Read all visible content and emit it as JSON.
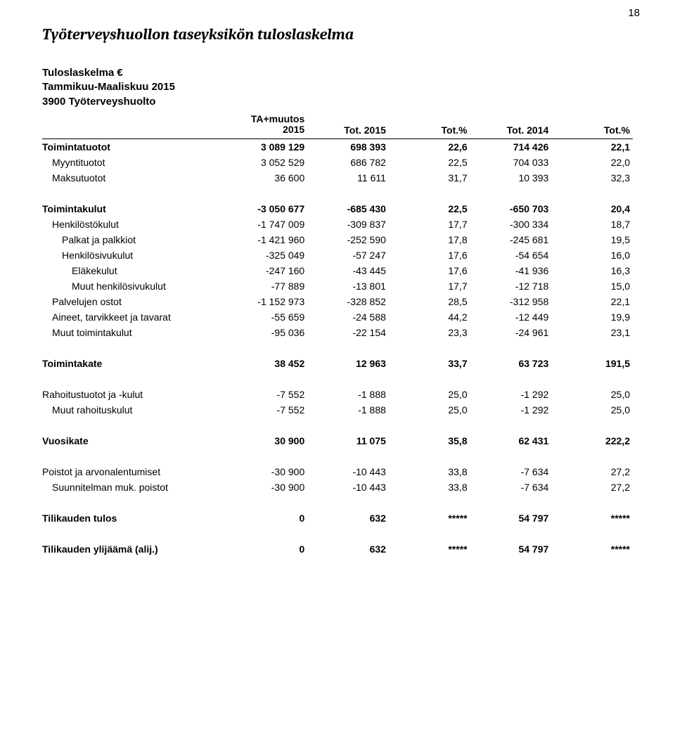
{
  "page_number": "18",
  "main_title": "Työterveyshuollon taseyksikön tuloslaskelma",
  "subhead_lines": [
    "Tuloslaskelma €",
    "Tammikuu-Maaliskuu 2015",
    "3900 Työterveyshuolto"
  ],
  "header_cells": [
    "",
    "TA+muutos 2015",
    "Tot. 2015",
    "Tot.%",
    "Tot. 2014",
    "Tot.%"
  ],
  "rows": [
    {
      "label": "Toimintatuotot",
      "indent": 0,
      "bold": true,
      "cells": [
        "3 089 129",
        "698 393",
        "22,6",
        "714 426",
        "22,1"
      ]
    },
    {
      "label": "Myyntituotot",
      "indent": 1,
      "bold": false,
      "cells": [
        "3 052 529",
        "686 782",
        "22,5",
        "704 033",
        "22,0"
      ]
    },
    {
      "label": "Maksutuotot",
      "indent": 1,
      "bold": false,
      "cells": [
        "36 600",
        "11 611",
        "31,7",
        "10 393",
        "32,3"
      ]
    },
    {
      "spacer": true
    },
    {
      "label": "Toimintakulut",
      "indent": 0,
      "bold": true,
      "cells": [
        "-3 050 677",
        "-685 430",
        "22,5",
        "-650 703",
        "20,4"
      ]
    },
    {
      "label": "Henkilöstökulut",
      "indent": 1,
      "bold": false,
      "cells": [
        "-1 747 009",
        "-309 837",
        "17,7",
        "-300 334",
        "18,7"
      ]
    },
    {
      "label": "Palkat ja palkkiot",
      "indent": 2,
      "bold": false,
      "cells": [
        "-1 421 960",
        "-252 590",
        "17,8",
        "-245 681",
        "19,5"
      ]
    },
    {
      "label": "Henkilösivukulut",
      "indent": 2,
      "bold": false,
      "cells": [
        "-325 049",
        "-57 247",
        "17,6",
        "-54 654",
        "16,0"
      ]
    },
    {
      "label": "Eläkekulut",
      "indent": 3,
      "bold": false,
      "cells": [
        "-247 160",
        "-43 445",
        "17,6",
        "-41 936",
        "16,3"
      ]
    },
    {
      "label": "Muut henkilösivukulut",
      "indent": 3,
      "bold": false,
      "cells": [
        "-77 889",
        "-13 801",
        "17,7",
        "-12 718",
        "15,0"
      ]
    },
    {
      "label": "Palvelujen ostot",
      "indent": 1,
      "bold": false,
      "cells": [
        "-1 152 973",
        "-328 852",
        "28,5",
        "-312 958",
        "22,1"
      ]
    },
    {
      "label": "Aineet, tarvikkeet ja tavarat",
      "indent": 1,
      "bold": false,
      "cells": [
        "-55 659",
        "-24 588",
        "44,2",
        "-12 449",
        "19,9"
      ]
    },
    {
      "label": "Muut toimintakulut",
      "indent": 1,
      "bold": false,
      "cells": [
        "-95 036",
        "-22 154",
        "23,3",
        "-24 961",
        "23,1"
      ]
    },
    {
      "spacer": true
    },
    {
      "label": "Toimintakate",
      "indent": 0,
      "bold": true,
      "cells": [
        "38 452",
        "12 963",
        "33,7",
        "63 723",
        "191,5"
      ]
    },
    {
      "spacer": true
    },
    {
      "label": "Rahoitustuotot ja -kulut",
      "indent": 0,
      "bold": false,
      "cells": [
        "-7 552",
        "-1 888",
        "25,0",
        "-1 292",
        "25,0"
      ]
    },
    {
      "label": "Muut rahoituskulut",
      "indent": 1,
      "bold": false,
      "cells": [
        "-7 552",
        "-1 888",
        "25,0",
        "-1 292",
        "25,0"
      ]
    },
    {
      "spacer": true
    },
    {
      "label": "Vuosikate",
      "indent": 0,
      "bold": true,
      "cells": [
        "30 900",
        "11 075",
        "35,8",
        "62 431",
        "222,2"
      ]
    },
    {
      "spacer": true
    },
    {
      "label": "Poistot ja arvonalentumiset",
      "indent": 0,
      "bold": false,
      "cells": [
        "-30 900",
        "-10 443",
        "33,8",
        "-7 634",
        "27,2"
      ]
    },
    {
      "label": "Suunnitelman muk. poistot",
      "indent": 1,
      "bold": false,
      "cells": [
        "-30 900",
        "-10 443",
        "33,8",
        "-7 634",
        "27,2"
      ]
    },
    {
      "spacer": true
    },
    {
      "label": "Tilikauden tulos",
      "indent": 0,
      "bold": true,
      "cells": [
        "0",
        "632",
        "*****",
        "54 797",
        "*****"
      ]
    },
    {
      "spacer": true
    },
    {
      "label": "Tilikauden ylijäämä (alij.)",
      "indent": 0,
      "bold": true,
      "cells": [
        "0",
        "632",
        "*****",
        "54 797",
        "*****"
      ]
    }
  ],
  "colors": {
    "text": "#000000",
    "background": "#ffffff",
    "rule": "#000000"
  }
}
